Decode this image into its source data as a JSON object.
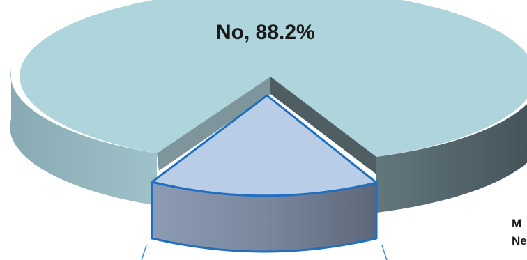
{
  "chart_data": {
    "type": "pie",
    "title": "",
    "series": [
      {
        "name": "No",
        "value": 88.2,
        "label": "No, 88.2%",
        "color": "#aed4dc",
        "exploded": false
      },
      {
        "name": "",
        "value": 11.8,
        "label": "",
        "color": "#b9cee6",
        "exploded": true
      }
    ],
    "annotations": [
      "M",
      "Ne"
    ],
    "legend": "none",
    "style": "3d-exploded"
  }
}
